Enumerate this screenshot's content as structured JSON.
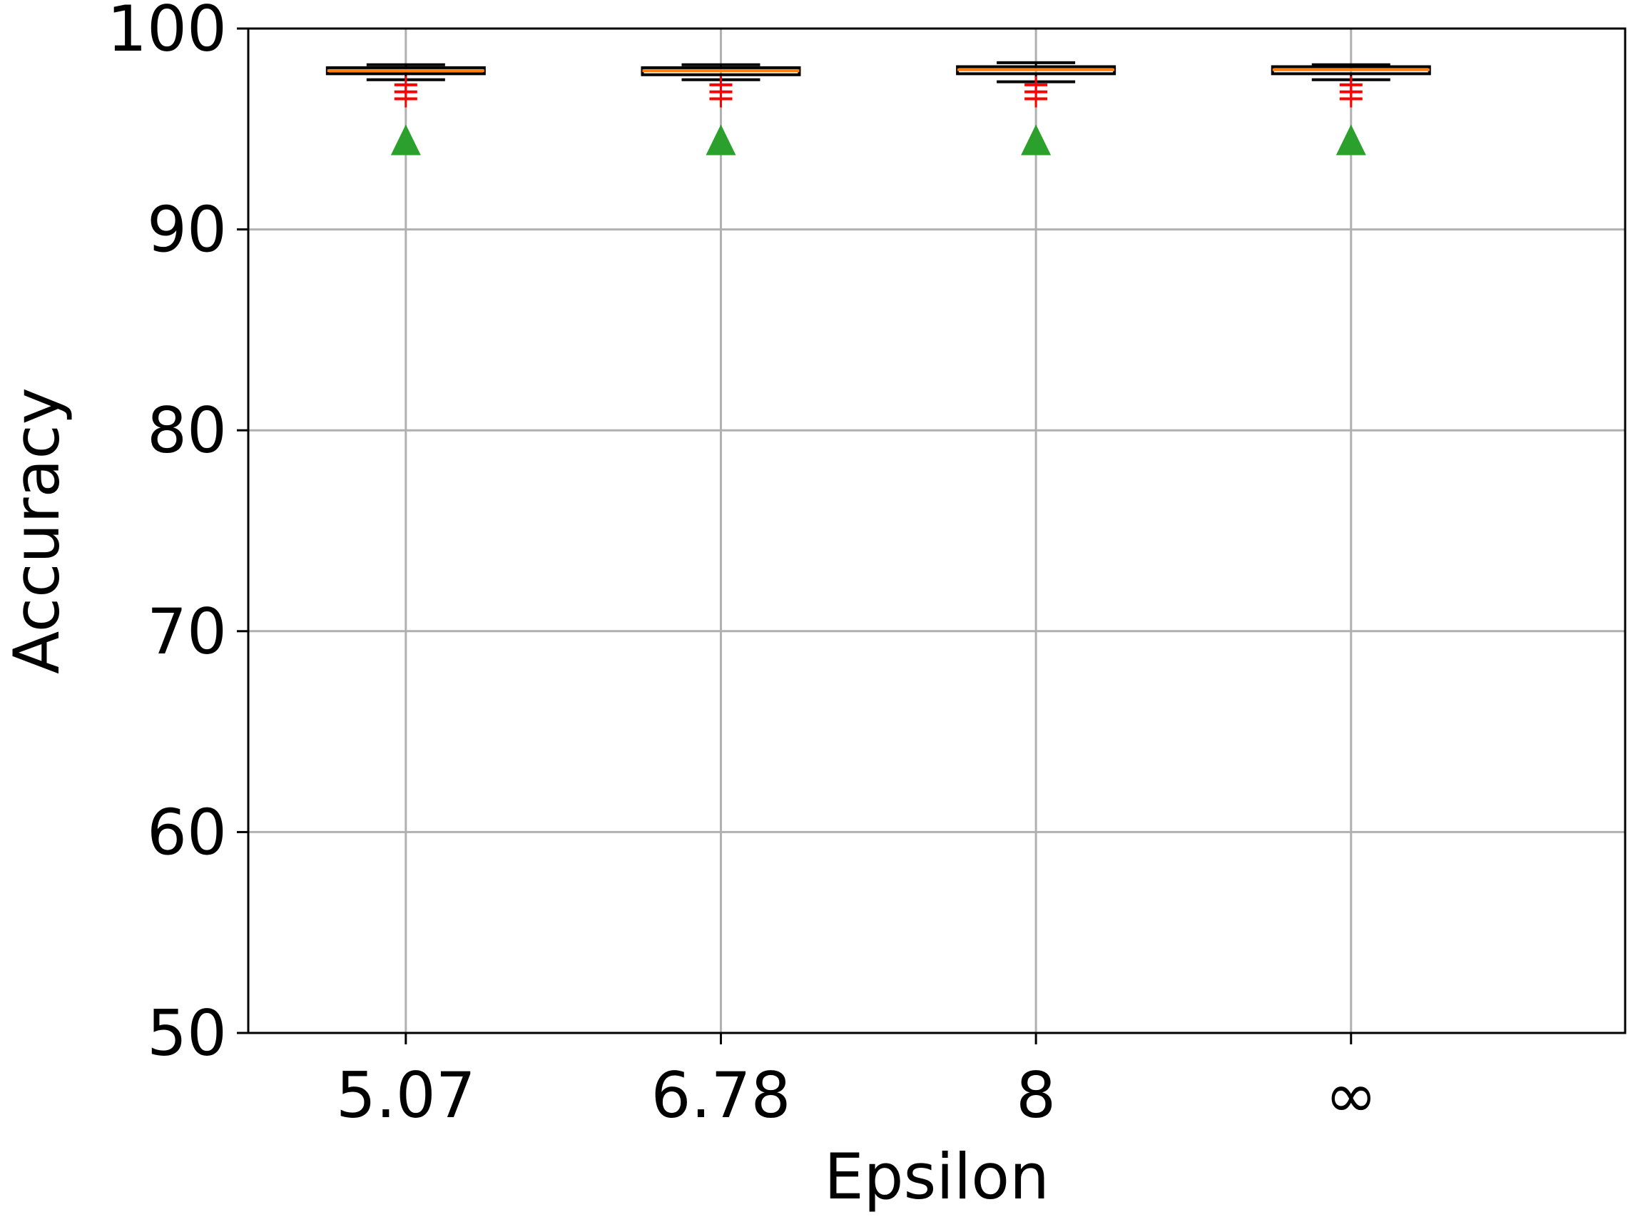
{
  "chart_data": {
    "type": "box",
    "title": "",
    "xlabel": "Epsilon",
    "ylabel": "Accuracy",
    "ylim": [
      50,
      100
    ],
    "yticks": [
      50,
      60,
      70,
      80,
      90,
      100
    ],
    "grid": true,
    "categories": [
      "5.07",
      "6.78",
      "8",
      "∞"
    ],
    "boxes": [
      {
        "q1": 97.75,
        "median": 97.9,
        "q3": 98.05,
        "whisker_low": 97.45,
        "whisker_high": 98.2,
        "outliers": [
          97.2,
          96.85,
          96.5
        ],
        "mean": 94.3
      },
      {
        "q1": 97.7,
        "median": 97.9,
        "q3": 98.05,
        "whisker_low": 97.45,
        "whisker_high": 98.2,
        "outliers": [
          97.2,
          96.85,
          96.5
        ],
        "mean": 94.3
      },
      {
        "q1": 97.75,
        "median": 97.95,
        "q3": 98.1,
        "whisker_low": 97.35,
        "whisker_high": 98.3,
        "outliers": [
          97.2,
          96.85,
          96.5
        ],
        "mean": 94.3
      },
      {
        "q1": 97.75,
        "median": 97.95,
        "q3": 98.1,
        "whisker_low": 97.45,
        "whisker_high": 98.2,
        "outliers": [
          97.2,
          96.85,
          96.5
        ],
        "mean": 94.3
      }
    ],
    "colors": {
      "box": "#000000",
      "median": "#ff7f0e",
      "outlier": "#ff0000",
      "mean": "#2ca02c",
      "grid": "#b0b0b0"
    }
  }
}
